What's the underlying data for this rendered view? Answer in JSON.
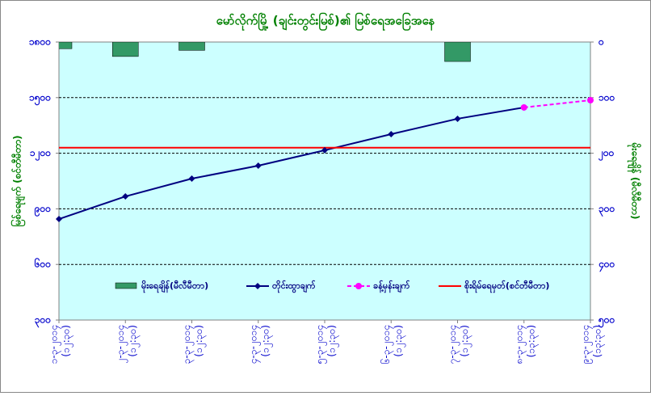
{
  "chart_data": {
    "type": "bar-line",
    "title": "မော်လိုက်မြို့ (ချင်းတွင်းမြစ်)၏ မြစ်ရေအခြေအနေ",
    "y_label": "မြစ်ရေမျက် (စင်တီမီတာ)",
    "y2_label": "မိုးရေချိန် (မီလီမီတာ)",
    "categories": [
      "၁-၃-၂၀၁၄",
      "၂-၃-၂၀၁၄",
      "၃-၃-၂၀၁၄",
      "၄-၃-၂၀၁၄",
      "၅-၃-၂၀၁၄",
      "၆-၃-၂၀၁၄",
      "၇-၃-၂၀၁၄",
      "၈-၃-၂၀၁၄",
      "၉-၃-၂၀၁၄"
    ],
    "times": [
      "(၁၂:၃၀)",
      "(၁၂:၃၀)",
      "(၁၂:၃၀)",
      "(၁၂:၃၀)",
      "(၁၂:၃၀)",
      "(၁၂:၃၀)",
      "(၁၂:၃၀)",
      "(၁၃:၃၀)",
      "(၁၃:၃၀)"
    ],
    "ylim": [
      300,
      1800
    ],
    "yticks": [
      {
        "value": 300,
        "label": "၃၀၀"
      },
      {
        "value": 600,
        "label": "၆၀၀"
      },
      {
        "value": 900,
        "label": "၉၀၀"
      },
      {
        "value": 1200,
        "label": "၁၂၀၀"
      },
      {
        "value": 1500,
        "label": "၁၅၀၀"
      },
      {
        "value": 1800,
        "label": "၁၈၀၀"
      }
    ],
    "y2lim": [
      0,
      500
    ],
    "y2_reversed": true,
    "y2ticks": [
      {
        "value": 0,
        "label": "၀"
      },
      {
        "value": 100,
        "label": "၁၀၀"
      },
      {
        "value": 200,
        "label": "၂၀၀"
      },
      {
        "value": 300,
        "label": "၃၀၀"
      },
      {
        "value": 400,
        "label": "၄၀၀"
      },
      {
        "value": 500,
        "label": "၅၀၀"
      }
    ],
    "grid": true,
    "series": [
      {
        "name": "မိုးရေချိန်(မီလီမီတာ)",
        "kind": "bar",
        "axis": "y2",
        "color": "#339966",
        "values": [
          12,
          26,
          15,
          0,
          0,
          0,
          35,
          null,
          null
        ]
      },
      {
        "name": "တိုင်းထွာချက်",
        "kind": "line",
        "color": "#000080",
        "values": [
          845,
          967,
          1063,
          1133,
          1216,
          1303,
          1386,
          1447,
          null
        ]
      },
      {
        "name": "ခန့်မှန်းချက်",
        "kind": "dashed",
        "color": "#ff00ff",
        "values": [
          null,
          null,
          null,
          null,
          null,
          null,
          null,
          1447,
          1486
        ]
      },
      {
        "name": "စိုးရိမ်ရေမှတ်(စင်တီမီတာ)",
        "kind": "level",
        "color": "#ff0000",
        "value": 1230
      }
    ]
  }
}
